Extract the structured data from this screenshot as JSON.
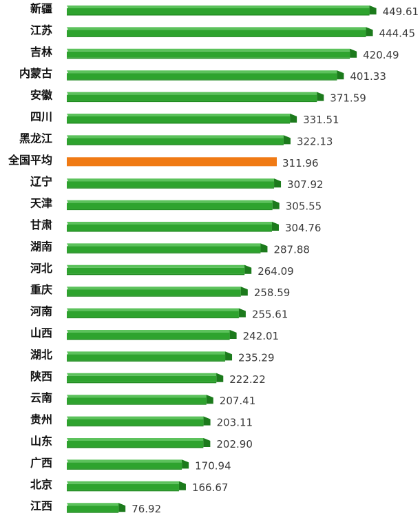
{
  "chart_data": {
    "type": "bar",
    "orientation": "horizontal",
    "categories": [
      "新疆",
      "江苏",
      "吉林",
      "内蒙古",
      "安徽",
      "四川",
      "黑龙江",
      "全国平均",
      "辽宁",
      "天津",
      "甘肃",
      "湖南",
      "河北",
      "重庆",
      "河南",
      "山西",
      "湖北",
      "陕西",
      "云南",
      "贵州",
      "山东",
      "广西",
      "北京",
      "江西"
    ],
    "values": [
      449.61,
      444.45,
      420.49,
      401.33,
      371.59,
      331.51,
      322.13,
      311.96,
      307.92,
      305.55,
      304.76,
      287.88,
      264.09,
      258.59,
      255.61,
      242.01,
      235.29,
      222.22,
      207.41,
      203.11,
      202.9,
      170.94,
      166.67,
      76.92
    ],
    "value_labels": [
      "449.61",
      "444.45",
      "420.49",
      "401.33",
      "371.59",
      "331.51",
      "322.13",
      "311.96",
      "307.92",
      "305.55",
      "304.76",
      "287.88",
      "264.09",
      "258.59",
      "255.61",
      "242.01",
      "235.29",
      "222.22",
      "207.41",
      "203.11",
      "202.90",
      "170.94",
      "166.67",
      "76.92"
    ],
    "highlight_category": "全国平均",
    "highlight_color": "#f07a14",
    "bar_color": "#2ea32e",
    "bar_side_color": "#1c7a1c",
    "grid": false,
    "legend": "none"
  }
}
